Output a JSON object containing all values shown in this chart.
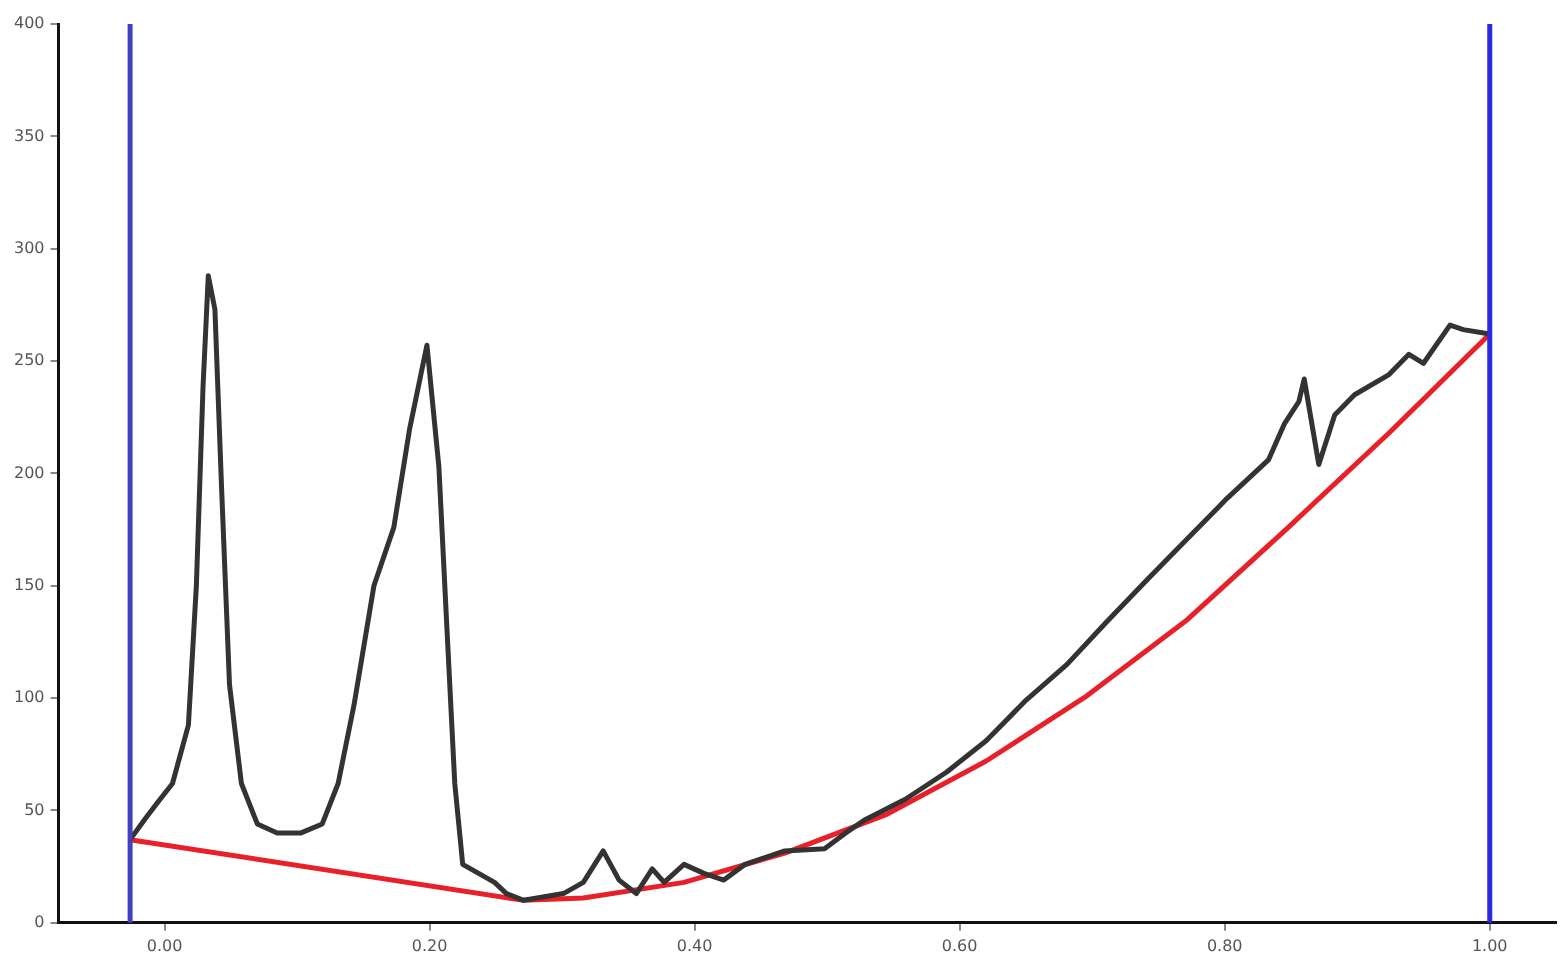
{
  "chart_data": {
    "type": "line",
    "xlim": [
      -0.08,
      1.05
    ],
    "ylim": [
      0,
      400
    ],
    "xticks": [
      {
        "value": 0,
        "label": "0.00"
      },
      {
        "value": 0.2,
        "label": "0.20"
      },
      {
        "value": 0.4,
        "label": "0.40"
      },
      {
        "value": 0.6,
        "label": "0.60"
      },
      {
        "value": 0.8,
        "label": "0.80"
      },
      {
        "value": 1,
        "label": "1.00"
      }
    ],
    "yticks": [
      0,
      50,
      100,
      150,
      200,
      250,
      300,
      350,
      400
    ],
    "grid": false,
    "legend": false,
    "marker": "none",
    "line_style": "solid",
    "series": [
      {
        "color": "#333333",
        "x": [
          -0.026,
          -0.015,
          -0.006,
          0.006,
          0.018,
          0.024,
          0.029,
          0.033,
          0.038,
          0.043,
          0.049,
          0.058,
          0.07,
          0.085,
          0.103,
          0.119,
          0.131,
          0.143,
          0.158,
          0.173,
          0.185,
          0.198,
          0.207,
          0.213,
          0.219,
          0.225,
          0.237,
          0.249,
          0.258,
          0.271,
          0.301,
          0.316,
          0.331,
          0.343,
          0.356,
          0.368,
          0.377,
          0.392,
          0.407,
          0.422,
          0.438,
          0.468,
          0.498,
          0.514,
          0.529,
          0.559,
          0.59,
          0.62,
          0.65,
          0.681,
          0.711,
          0.742,
          0.772,
          0.802,
          0.833,
          0.845,
          0.856,
          0.86,
          0.871,
          0.883,
          0.898,
          0.924,
          0.939,
          0.95,
          0.97,
          0.98,
          1.0
        ],
        "values": [
          37,
          46,
          53,
          62,
          88,
          150,
          238,
          288,
          273,
          194,
          106,
          62,
          44,
          40,
          40,
          44,
          62,
          97,
          150,
          176,
          220,
          257,
          203,
          132,
          62,
          26,
          22,
          18,
          13,
          10,
          13,
          18,
          32,
          19,
          13,
          24,
          18,
          26,
          22,
          19,
          26,
          32,
          33,
          40,
          46,
          55,
          67,
          81,
          99,
          115,
          134,
          153,
          171,
          189,
          206,
          222,
          232,
          242,
          204,
          226,
          235,
          244,
          253,
          249,
          266,
          264,
          262
        ]
      },
      {
        "color": "#e8202a",
        "x": [
          -0.026,
          0.271,
          0.316,
          0.392,
          0.468,
          0.544,
          0.62,
          0.696,
          0.772,
          0.848,
          0.924,
          1.0
        ],
        "values": [
          37,
          10,
          11,
          18,
          31,
          48,
          72,
          101,
          135,
          176,
          218,
          262
        ]
      }
    ],
    "ref_lines": [
      {
        "axis": "x",
        "value": -0.026,
        "color": "#4040c0"
      },
      {
        "axis": "x",
        "value": 1.0,
        "color": "#2a2ae0"
      }
    ]
  }
}
